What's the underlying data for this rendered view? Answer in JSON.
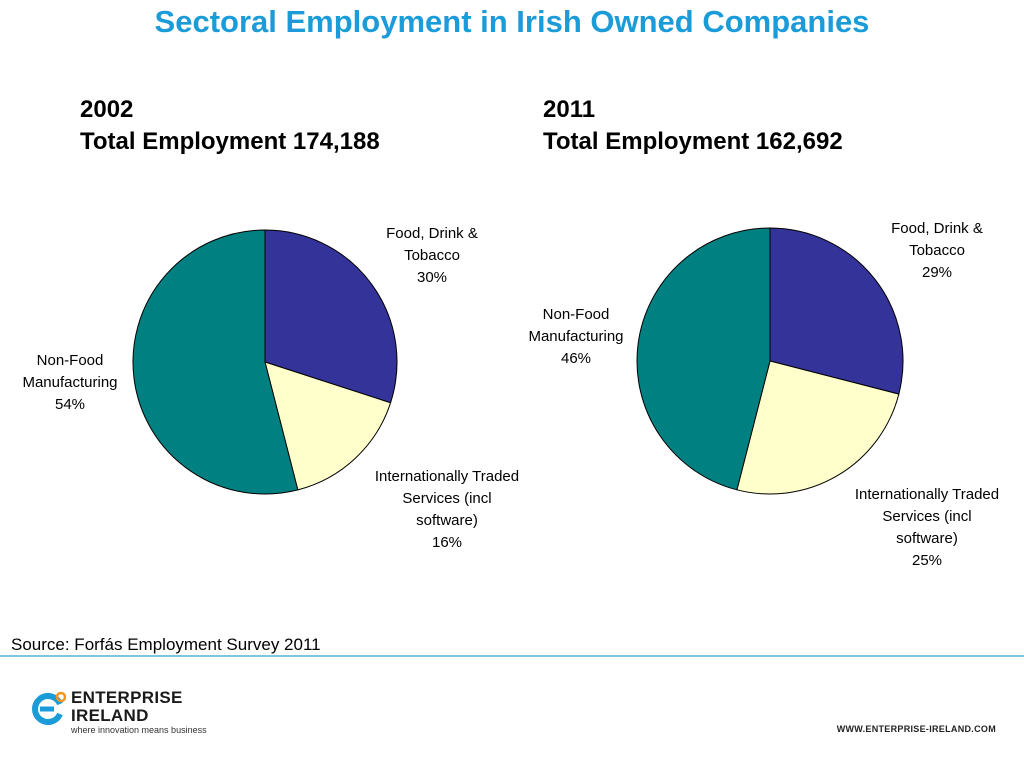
{
  "title": "Sectoral Employment in Irish Owned Companies",
  "source": "Source: Forfás Employment Survey 2011",
  "logo": {
    "line1": "ENTERPRISE",
    "line2": "IRELAND",
    "tagline": "where innovation means business",
    "icon": "enterprise-ireland-swirl-icon"
  },
  "website": "WWW.ENTERPRISE-IRELAND.COM",
  "colors": {
    "title": "#1b9bd7",
    "food": "#333399",
    "services": "#ffffcc",
    "non_food": "#008080",
    "rule": "#7cc6df"
  },
  "chart_data": [
    {
      "type": "pie",
      "year": "2002",
      "subtitle": "Total Employment 174,188",
      "slices": [
        {
          "label_lines": [
            "Food, Drink &",
            "Tobacco"
          ],
          "pct_label": "30%",
          "value": 30,
          "color": "#333399"
        },
        {
          "label_lines": [
            "Internationally Traded",
            "Services (incl",
            "software)"
          ],
          "pct_label": "16%",
          "value": 16,
          "color": "#ffffcc"
        },
        {
          "label_lines": [
            "Non-Food",
            "Manufacturing"
          ],
          "pct_label": "54%",
          "value": 54,
          "color": "#008080"
        }
      ]
    },
    {
      "type": "pie",
      "year": "2011",
      "subtitle": "Total Employment 162,692",
      "slices": [
        {
          "label_lines": [
            "Food, Drink &",
            "Tobacco"
          ],
          "pct_label": "29%",
          "value": 29,
          "color": "#333399"
        },
        {
          "label_lines": [
            "Internationally Traded",
            "Services (incl",
            "software)"
          ],
          "pct_label": "25%",
          "value": 25,
          "color": "#ffffcc"
        },
        {
          "label_lines": [
            "Non-Food",
            "Manufacturing"
          ],
          "pct_label": "46%",
          "value": 46,
          "color": "#008080"
        }
      ]
    }
  ]
}
